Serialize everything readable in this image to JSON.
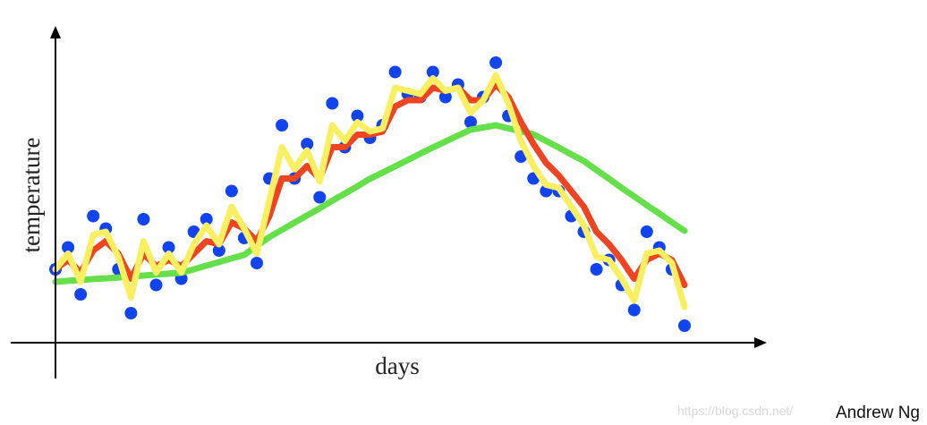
{
  "chart_data": {
    "type": "scatter",
    "x_label": "days",
    "y_label": "temperature",
    "xlim": [
      0,
      100
    ],
    "ylim": [
      0,
      100
    ],
    "x": [
      0,
      2,
      4,
      6,
      8,
      10,
      12,
      14,
      16,
      18,
      20,
      22,
      24,
      26,
      28,
      30,
      32,
      34,
      36,
      38,
      40,
      42,
      44,
      46,
      48,
      50,
      52,
      54,
      56,
      58,
      60,
      62,
      64,
      66,
      68,
      70,
      72,
      74,
      76,
      78,
      80,
      82,
      84,
      86,
      88,
      90,
      92,
      94,
      96,
      98,
      100
    ],
    "series": [
      {
        "type": "scatter",
        "color": "#1144ee",
        "values": [
          24,
          31,
          16,
          41,
          37,
          24,
          10,
          40,
          19,
          31,
          21,
          36,
          40,
          30,
          49,
          34,
          26,
          53,
          70,
          53,
          64,
          47,
          77,
          63,
          73,
          66,
          70,
          87,
          80,
          79,
          87,
          79,
          83,
          71,
          79,
          90,
          73,
          60,
          53,
          49,
          49,
          41,
          36,
          24,
          27,
          19,
          11,
          36,
          31,
          24,
          6
        ]
      },
      {
        "type": "line",
        "color": "#66e04a",
        "values": [
          20,
          20.3,
          20.6,
          20.9,
          21.1,
          21.4,
          21.7,
          22,
          22.3,
          22.6,
          22.9,
          24,
          25.2,
          26.3,
          27.5,
          28.6,
          31.5,
          34.3,
          36.6,
          38.9,
          41.2,
          43.5,
          45.9,
          48.2,
          50.5,
          52.9,
          54.9,
          56.9,
          58.9,
          60.9,
          62.9,
          64.8,
          66.7,
          68.6,
          69.3,
          70,
          69,
          68.1,
          67.1,
          65,
          62.9,
          60.7,
          58.6,
          55.7,
          52.9,
          50,
          47.3,
          44.5,
          41.8,
          39,
          36.3
        ]
      },
      {
        "type": "line",
        "color": "#ee4422",
        "values": [
          24,
          27,
          23,
          30,
          33,
          29,
          21,
          29,
          25,
          27,
          25,
          29,
          33,
          32,
          39,
          37,
          33,
          41,
          53,
          53,
          57,
          53,
          63,
          63,
          67,
          67,
          68,
          76,
          78,
          78,
          82,
          81,
          82,
          78,
          78,
          83,
          79,
          71,
          64,
          58,
          54,
          49,
          44,
          36,
          32,
          27,
          21,
          27,
          29,
          27,
          19
        ]
      },
      {
        "type": "line",
        "color": "#f8f060",
        "values": [
          24,
          29,
          20,
          35,
          36,
          28,
          15,
          33,
          23,
          29,
          23,
          32,
          38,
          32,
          44,
          37,
          29,
          46,
          63,
          56,
          62,
          52,
          70,
          65,
          71,
          68,
          69,
          82,
          81,
          80,
          85,
          81,
          82,
          74,
          78,
          86,
          77,
          65,
          57,
          51,
          50,
          44,
          38,
          28,
          27,
          21,
          14,
          29,
          30,
          26,
          12
        ]
      }
    ]
  },
  "footer": {
    "watermark": "https://blog.csdn.net/",
    "author": "Andrew Ng"
  }
}
